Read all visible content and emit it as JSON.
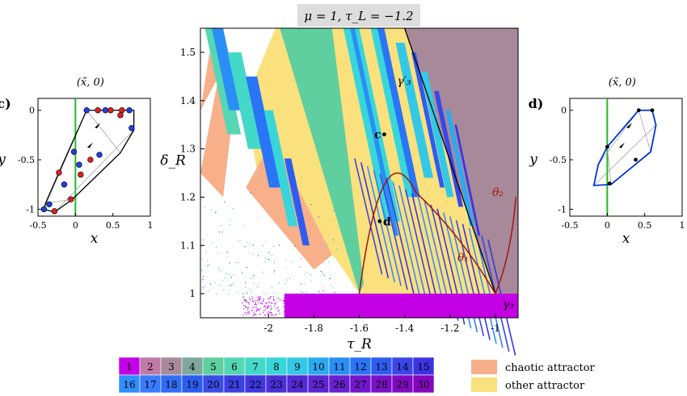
{
  "title": "μ = 1, τ_L = −1.2",
  "colors": {
    "chaotic": "#f7b08a",
    "other": "#fbe17d",
    "curve": "#a31515",
    "orbit_line": "#0033dd",
    "vertical": "#22bb22",
    "palette": [
      "#c400e6",
      "#c07aa6",
      "#a8899a",
      "#7fa89c",
      "#5fcf9f",
      "#55d6b4",
      "#44d8c8",
      "#38d6d9",
      "#33c8e6",
      "#2aaaf0",
      "#2a8ef7",
      "#2a74f7",
      "#2f5cf0",
      "#3a46e8",
      "#3d34e0",
      "#2f8fff",
      "#3a7cff",
      "#2f6cf8",
      "#2a5cf0",
      "#3a4de8",
      "#3a40e2",
      "#3f36dd",
      "#4a2fd8",
      "#5528d5",
      "#5e24d2",
      "#6a1fd0",
      "#7316cc",
      "#7a10c8",
      "#800ac4",
      "#8605c0"
    ]
  },
  "chart_data": [
    {
      "type": "heatmap",
      "name": "main-bifurcation",
      "title": "μ = 1, τ_L = −1.2",
      "xlabel": "τ_R",
      "ylabel": "δ_R",
      "xlim": [
        -2.3,
        -0.9
      ],
      "ylim": [
        0.95,
        1.55
      ],
      "xticks": [
        -2,
        -1.8,
        -1.6,
        -1.4,
        -1.2,
        -1
      ],
      "xtick_labels": [
        "-2",
        "-1.8",
        "-1.6",
        "-1.4",
        "-1.2",
        "-1"
      ],
      "yticks": [
        1,
        1.1,
        1.2,
        1.3,
        1.4,
        1.5
      ],
      "ytick_labels": [
        "1",
        "1.1",
        "1.2",
        "1.3",
        "1.4",
        "1.5"
      ],
      "points": [
        {
          "label": "c",
          "x": -1.49,
          "y": 1.33
        },
        {
          "label": "d",
          "x": -1.51,
          "y": 1.15
        }
      ],
      "curve_labels": [
        "γ′₃",
        "θ₁",
        "θ₂",
        "γ₃"
      ],
      "legend": [
        {
          "label": "chaotic attractor",
          "color": "#f7b08a"
        },
        {
          "label": "other attractor",
          "color": "#fbe17d"
        }
      ],
      "period_labels": [
        "1",
        "2",
        "3",
        "4",
        "5",
        "6",
        "7",
        "8",
        "9",
        "10",
        "11",
        "12",
        "13",
        "14",
        "15",
        "16",
        "17",
        "18",
        "19",
        "20",
        "21",
        "22",
        "23",
        "24",
        "25",
        "26",
        "27",
        "28",
        "29",
        "30"
      ]
    },
    {
      "type": "line",
      "name": "panel-c",
      "panel_label": "c)",
      "xlabel": "x",
      "ylabel": "y",
      "xlim": [
        -0.5,
        1
      ],
      "ylim": [
        -1.07,
        0.12
      ],
      "xticks": [
        -0.5,
        0,
        0.5,
        1
      ],
      "xtick_labels": [
        "-0.5",
        "0",
        "0.5",
        "1"
      ],
      "yticks": [
        -1,
        -0.5,
        0
      ],
      "ytick_labels": [
        "-1",
        "-0.5",
        "0"
      ],
      "annotation": "(x̃, 0)",
      "polygon": [
        [
          0.15,
          0
        ],
        [
          0.78,
          0
        ],
        [
          0.78,
          -0.2
        ],
        [
          0.6,
          -0.43
        ],
        [
          -0.04,
          -0.9
        ],
        [
          -0.28,
          -1.03
        ],
        [
          -0.42,
          -1.0
        ],
        [
          -0.4,
          -0.94
        ],
        [
          -0.18,
          -0.56
        ],
        [
          0.15,
          0
        ]
      ],
      "red_points": [
        [
          0.3,
          0
        ],
        [
          0.47,
          0
        ],
        [
          0.62,
          0
        ],
        [
          0.2,
          -0.5
        ],
        [
          0.07,
          -0.65
        ],
        [
          0.6,
          -0.05
        ],
        [
          -0.22,
          -0.63
        ],
        [
          -0.06,
          -0.9
        ],
        [
          -0.28,
          -1.02
        ]
      ],
      "blue_points": [
        [
          0.15,
          0
        ],
        [
          0.4,
          0
        ],
        [
          0.72,
          0
        ],
        [
          0.75,
          -0.18
        ],
        [
          0.32,
          -0.45
        ],
        [
          0.05,
          -0.55
        ],
        [
          -0.02,
          -0.42
        ],
        [
          -0.15,
          -0.75
        ],
        [
          -0.35,
          -0.95
        ],
        [
          -0.42,
          -1.0
        ]
      ]
    },
    {
      "type": "line",
      "name": "panel-d",
      "panel_label": "d)",
      "xlabel": "x",
      "ylabel": "y",
      "xlim": [
        -0.5,
        1
      ],
      "ylim": [
        -1.07,
        0.12
      ],
      "xticks": [
        -0.5,
        0,
        0.5,
        1
      ],
      "xtick_labels": [
        "-0.5",
        "0",
        "0.5",
        "1"
      ],
      "yticks": [
        -1,
        -0.5,
        0
      ],
      "ytick_labels": [
        "-1",
        "-0.5",
        "0"
      ],
      "annotation": "(x̃, 0)",
      "polygon": [
        [
          0.42,
          0
        ],
        [
          0.6,
          0
        ],
        [
          0.65,
          -0.15
        ],
        [
          0.58,
          -0.42
        ],
        [
          0.05,
          -0.75
        ],
        [
          -0.18,
          -0.76
        ],
        [
          -0.12,
          -0.55
        ],
        [
          0.0,
          -0.37
        ],
        [
          0.42,
          0
        ]
      ],
      "points": [
        [
          0.42,
          0
        ],
        [
          0.6,
          0
        ],
        [
          0.38,
          -0.5
        ],
        [
          0.03,
          -0.74
        ],
        [
          0.0,
          -0.37
        ]
      ]
    }
  ]
}
